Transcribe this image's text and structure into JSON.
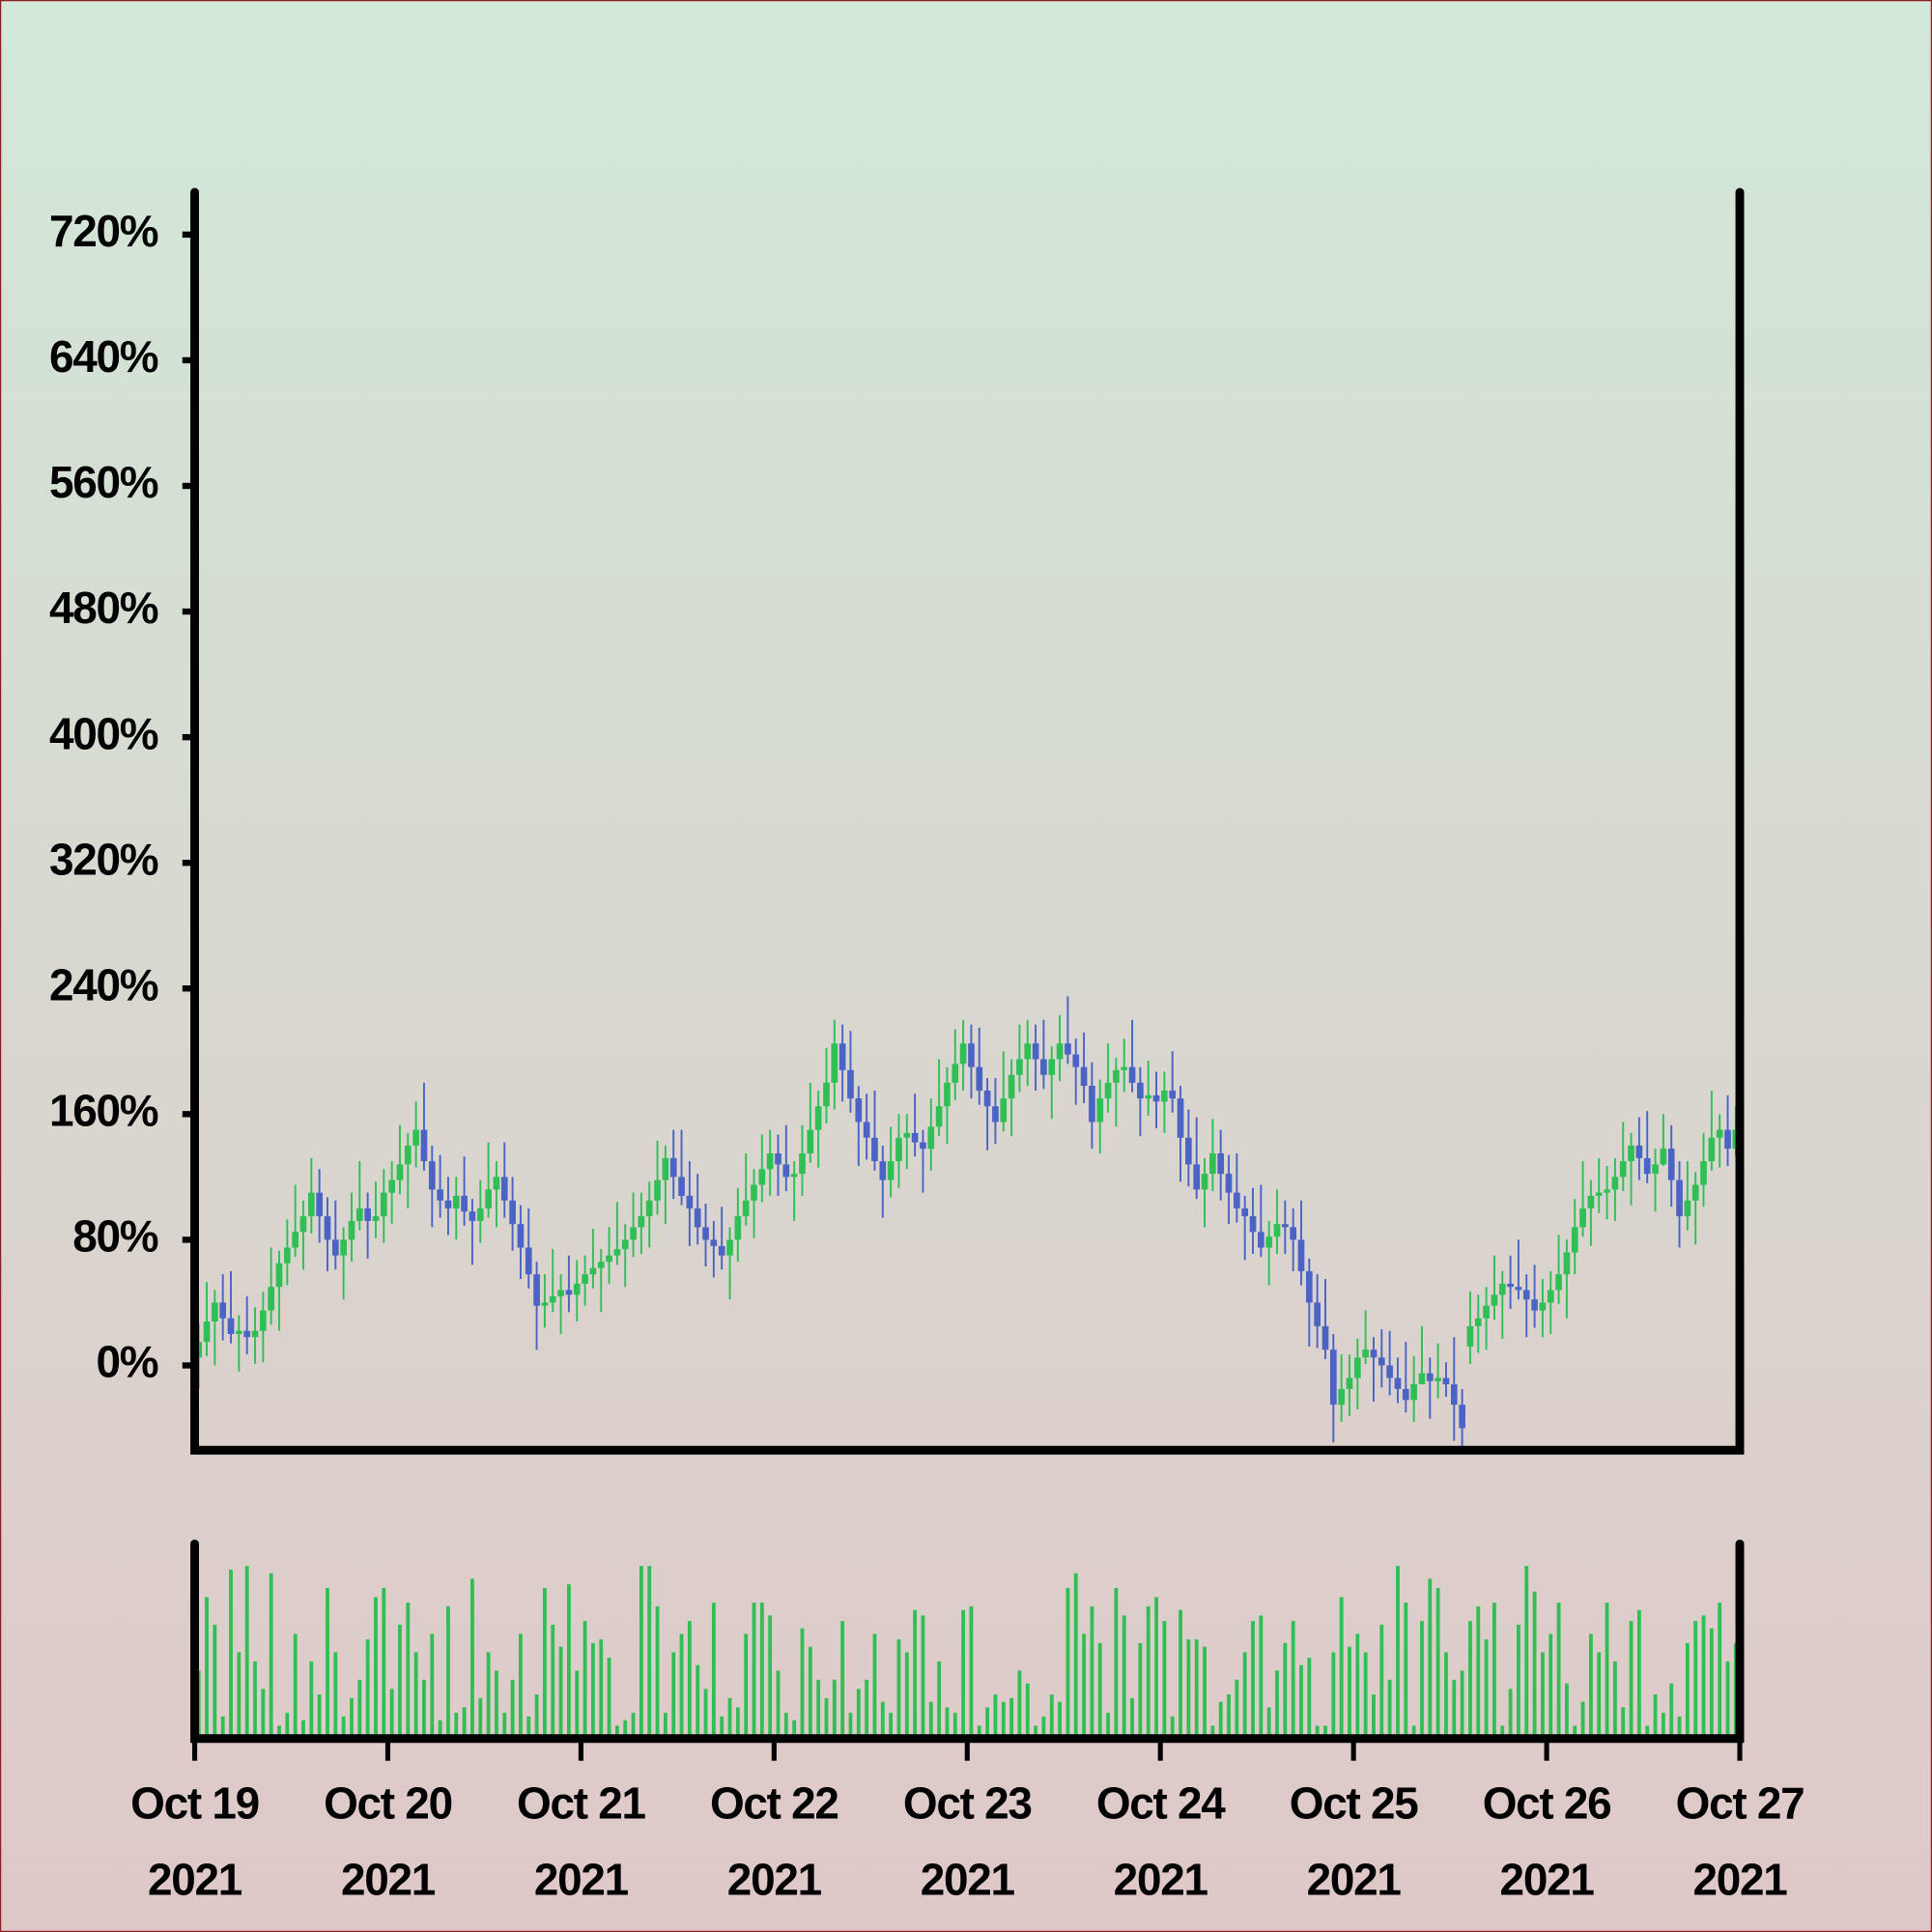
{
  "chart_data": {
    "type": "candlestick",
    "xlim": [
      "2021-10-19",
      "2021-10-27"
    ],
    "xticks": [
      {
        "value": "2021-10-19",
        "label": "Oct 19\n2021"
      },
      {
        "value": "2021-10-20",
        "label": "Oct 20\n2021"
      },
      {
        "value": "2021-10-21",
        "label": "Oct 21\n2021"
      },
      {
        "value": "2021-10-22",
        "label": "Oct 22\n2021"
      },
      {
        "value": "2021-10-23",
        "label": "Oct 23\n2021"
      },
      {
        "value": "2021-10-24",
        "label": "Oct 24\n2021"
      },
      {
        "value": "2021-10-25",
        "label": "Oct 25\n2021"
      },
      {
        "value": "2021-10-26",
        "label": "Oct 26\n2021"
      },
      {
        "value": "2021-10-27",
        "label": "Oct 27\n2021"
      }
    ],
    "ylim": [
      -54,
      747
    ],
    "yticks": [
      {
        "value": 0,
        "label": "0%"
      },
      {
        "value": 80,
        "label": "80%"
      },
      {
        "value": 160,
        "label": "160%"
      },
      {
        "value": 240,
        "label": "240%"
      },
      {
        "value": 320,
        "label": "320%"
      },
      {
        "value": 400,
        "label": "400%"
      },
      {
        "value": 480,
        "label": "480%"
      },
      {
        "value": 560,
        "label": "560%"
      },
      {
        "value": 640,
        "label": "640%"
      },
      {
        "value": 720,
        "label": "720%"
      }
    ],
    "up_color": "#2fbf55",
    "down_color": "#4a63c4",
    "volume_color": "#2fbf55",
    "volume_lim": [
      0,
      100
    ],
    "open": [
      5,
      15,
      28,
      40,
      30,
      20,
      22,
      18,
      22,
      35,
      50,
      65,
      75,
      85,
      95,
      110,
      95,
      80,
      70,
      80,
      92,
      100,
      92,
      95,
      110,
      118,
      128,
      140,
      150,
      130,
      112,
      105,
      100,
      108,
      98,
      92,
      100,
      112,
      120,
      105,
      90,
      75,
      58,
      38,
      40,
      44,
      48,
      45,
      52,
      58,
      62,
      66,
      70,
      74,
      80,
      88,
      95,
      105,
      118,
      132,
      120,
      108,
      100,
      88,
      80,
      76,
      70,
      80,
      95,
      105,
      115,
      125,
      135,
      128,
      120,
      122,
      135,
      150,
      165,
      180,
      205,
      188,
      170,
      155,
      145,
      130,
      118,
      130,
      145,
      148,
      142,
      138,
      152,
      165,
      180,
      192,
      205,
      190,
      175,
      165,
      155,
      170,
      185,
      195,
      205,
      195,
      185,
      195,
      205,
      198,
      190,
      178,
      155,
      170,
      180,
      188,
      190,
      180,
      170,
      172,
      168,
      175,
      170,
      145,
      128,
      112,
      122,
      135,
      122,
      110,
      100,
      95,
      85,
      75,
      82,
      90,
      88,
      80,
      60,
      40,
      25,
      10,
      -25,
      -15,
      -8,
      5,
      10,
      5,
      0,
      -8,
      -15,
      -22,
      -12,
      -5,
      -10,
      -8,
      -12,
      -25,
      12,
      25,
      30,
      38,
      45,
      52,
      50,
      48,
      42,
      35,
      40,
      48,
      58,
      72,
      88,
      100,
      108,
      110,
      112,
      120,
      130,
      140,
      132,
      122,
      128,
      138,
      118,
      95,
      105,
      115,
      130,
      145,
      150,
      138
    ],
    "high": [
      27,
      53,
      48,
      58,
      60,
      32,
      44,
      37,
      47,
      75,
      73,
      93,
      115,
      105,
      132,
      125,
      107,
      105,
      88,
      110,
      130,
      110,
      117,
      125,
      130,
      153,
      148,
      168,
      180,
      140,
      134,
      120,
      120,
      133,
      106,
      118,
      142,
      130,
      142,
      120,
      102,
      100,
      66,
      58,
      74,
      58,
      70,
      67,
      70,
      87,
      74,
      88,
      104,
      90,
      110,
      110,
      117,
      143,
      140,
      150,
      150,
      130,
      122,
      103,
      92,
      101,
      88,
      113,
      135,
      125,
      147,
      150,
      147,
      153,
      130,
      153,
      180,
      175,
      202,
      220,
      217,
      213,
      178,
      173,
      175,
      140,
      152,
      160,
      160,
      173,
      150,
      170,
      195,
      190,
      214,
      220,
      217,
      215,
      183,
      183,
      200,
      195,
      217,
      220,
      217,
      220,
      203,
      223,
      235,
      208,
      212,
      193,
      182,
      205,
      196,
      208,
      220,
      190,
      194,
      187,
      187,
      200,
      178,
      163,
      158,
      132,
      157,
      150,
      134,
      135,
      108,
      113,
      115,
      92,
      112,
      105,
      100,
      105,
      68,
      58,
      55,
      20,
      7,
      7,
      17,
      35,
      18,
      23,
      22,
      5,
      15,
      6,
      25,
      5,
      14,
      2,
      18,
      -15,
      47,
      45,
      50,
      70,
      60,
      70,
      80,
      58,
      64,
      55,
      60,
      83,
      80,
      106,
      130,
      118,
      132,
      127,
      132,
      155,
      148,
      158,
      162,
      138,
      160,
      153,
      130,
      130,
      123,
      148,
      175,
      160,
      172,
      165
    ],
    "low": [
      -15,
      6,
      0,
      16,
      14,
      -4,
      7,
      1,
      2,
      26,
      22,
      51,
      69,
      61,
      84,
      78,
      60,
      61,
      42,
      66,
      86,
      68,
      81,
      78,
      90,
      109,
      100,
      126,
      124,
      88,
      94,
      83,
      80,
      89,
      64,
      78,
      94,
      88,
      94,
      73,
      55,
      49,
      10,
      24,
      34,
      20,
      34,
      28,
      38,
      49,
      34,
      52,
      64,
      50,
      69,
      71,
      75,
      96,
      90,
      106,
      102,
      76,
      77,
      63,
      56,
      61,
      42,
      66,
      89,
      81,
      104,
      108,
      108,
      111,
      92,
      108,
      129,
      126,
      154,
      163,
      168,
      161,
      127,
      131,
      124,
      94,
      107,
      113,
      125,
      133,
      110,
      124,
      146,
      141,
      169,
      175,
      170,
      166,
      137,
      141,
      149,
      146,
      174,
      178,
      175,
      176,
      157,
      181,
      192,
      166,
      167,
      138,
      135,
      161,
      152,
      174,
      174,
      146,
      159,
      151,
      148,
      161,
      117,
      114,
      106,
      88,
      111,
      105,
      90,
      91,
      67,
      71,
      69,
      51,
      71,
      71,
      60,
      51,
      12,
      11,
      4,
      -49,
      -36,
      -32,
      -28,
      1,
      -23,
      -14,
      -19,
      -24,
      -30,
      -36,
      -11,
      -34,
      -21,
      -20,
      -48,
      -52,
      1,
      8,
      10,
      29,
      17,
      36,
      42,
      18,
      24,
      18,
      20,
      39,
      30,
      58,
      82,
      76,
      97,
      93,
      92,
      111,
      102,
      118,
      116,
      98,
      127,
      101,
      75,
      86,
      77,
      101,
      124,
      126,
      127,
      133
    ],
    "close": [
      15,
      28,
      40,
      30,
      20,
      22,
      18,
      22,
      35,
      50,
      65,
      75,
      85,
      95,
      110,
      95,
      80,
      70,
      80,
      92,
      100,
      92,
      95,
      110,
      118,
      128,
      140,
      150,
      130,
      112,
      105,
      100,
      108,
      98,
      92,
      100,
      112,
      120,
      105,
      90,
      75,
      58,
      38,
      40,
      44,
      48,
      45,
      52,
      58,
      62,
      66,
      70,
      74,
      80,
      88,
      95,
      105,
      118,
      132,
      120,
      108,
      100,
      88,
      80,
      76,
      70,
      80,
      95,
      105,
      115,
      125,
      135,
      128,
      120,
      122,
      135,
      150,
      165,
      180,
      205,
      188,
      170,
      155,
      145,
      130,
      118,
      130,
      145,
      148,
      142,
      138,
      152,
      165,
      180,
      192,
      205,
      190,
      175,
      165,
      155,
      170,
      185,
      195,
      205,
      195,
      185,
      195,
      205,
      198,
      190,
      178,
      155,
      170,
      180,
      188,
      190,
      180,
      170,
      172,
      168,
      175,
      170,
      145,
      128,
      112,
      122,
      135,
      122,
      110,
      100,
      95,
      85,
      75,
      82,
      90,
      88,
      80,
      60,
      40,
      25,
      10,
      -25,
      -15,
      -8,
      5,
      10,
      5,
      0,
      -8,
      -15,
      -22,
      -12,
      -5,
      -10,
      -8,
      -12,
      -25,
      -40,
      25,
      30,
      38,
      45,
      52,
      50,
      48,
      42,
      35,
      40,
      48,
      58,
      72,
      88,
      100,
      108,
      110,
      112,
      120,
      130,
      140,
      132,
      122,
      128,
      138,
      118,
      95,
      105,
      115,
      130,
      145,
      150,
      138,
      150
    ],
    "volume": [
      35,
      75,
      60,
      10,
      90,
      45,
      92,
      40,
      25,
      88,
      5,
      12,
      55,
      8,
      40,
      22,
      80,
      45,
      10,
      20,
      30,
      52,
      75,
      80,
      25,
      60,
      72,
      45,
      30,
      55,
      8,
      70,
      12,
      15,
      85,
      20,
      45,
      35,
      12,
      30,
      55,
      10,
      22,
      80,
      60,
      48,
      82,
      35,
      62,
      50,
      52,
      42,
      5,
      8,
      12,
      92,
      92,
      70,
      12,
      45,
      55,
      62,
      38,
      25,
      72,
      10,
      20,
      15,
      55,
      72,
      72,
      65,
      35,
      12,
      8,
      58,
      48,
      30,
      20,
      30,
      62,
      12,
      25,
      30,
      55,
      18,
      12,
      52,
      45,
      68,
      65,
      18,
      40,
      15,
      12,
      68,
      70,
      5,
      15,
      22,
      18,
      20,
      35,
      28,
      5,
      10,
      22,
      18,
      80,
      88,
      55,
      70,
      50,
      12,
      80,
      65,
      20,
      50,
      70,
      75,
      62,
      10,
      68,
      52,
      52,
      48,
      5,
      18,
      22,
      30,
      45,
      62,
      65,
      15,
      35,
      50,
      62,
      38,
      42,
      5,
      5,
      45,
      75,
      48,
      55,
      45,
      22,
      60,
      30,
      92,
      72,
      5,
      62,
      85,
      80,
      45,
      30,
      35,
      62,
      70,
      52,
      72,
      5,
      25,
      60,
      92,
      78,
      45,
      55,
      72,
      28,
      5,
      18,
      55,
      45,
      72,
      40,
      15,
      62,
      68,
      5,
      22,
      12,
      28,
      10,
      50,
      62,
      65,
      58,
      72,
      40,
      50
    ]
  }
}
